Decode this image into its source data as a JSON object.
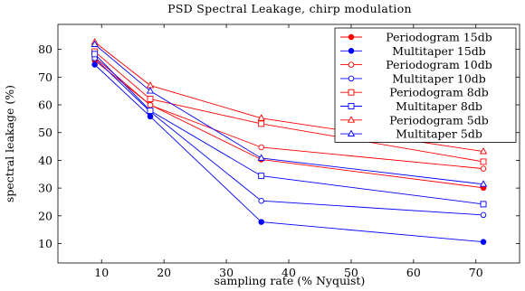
{
  "chart_data": {
    "type": "line",
    "title": "PSD Spectral Leakage, chirp modulation",
    "xlabel": "sampling rate (% Nyquist)",
    "ylabel": "spectral leakage (%)",
    "xlim": [
      3,
      77
    ],
    "ylim": [
      3,
      89
    ],
    "xticks": [
      10,
      20,
      30,
      40,
      50,
      60,
      70
    ],
    "yticks": [
      10,
      20,
      30,
      40,
      50,
      60,
      70,
      80
    ],
    "grid": false,
    "legend_position": "top-right",
    "series": [
      {
        "name": "Periodogram 15db",
        "color": "#ff0000",
        "marker": "filled-circle",
        "x": [
          8.9,
          17.8,
          35.6,
          71.2
        ],
        "y": [
          76,
          60,
          40.3,
          30.1
        ]
      },
      {
        "name": "Multitaper 15db",
        "color": "#0000ff",
        "marker": "filled-circle",
        "x": [
          8.9,
          17.8,
          35.6,
          71.2
        ],
        "y": [
          74.5,
          55.8,
          17.8,
          10.6
        ]
      },
      {
        "name": "Periodogram 10db",
        "color": "#ff0000",
        "marker": "open-circle",
        "x": [
          8.9,
          17.8,
          35.6,
          71.2
        ],
        "y": [
          77.2,
          59.9,
          44.7,
          37
        ]
      },
      {
        "name": "Multitaper 10db",
        "color": "#0000ff",
        "marker": "open-circle",
        "x": [
          8.9,
          17.8,
          35.6,
          71.2
        ],
        "y": [
          76.8,
          57.5,
          25.4,
          20.3
        ]
      },
      {
        "name": "Periodogram 8db",
        "color": "#ff0000",
        "marker": "open-square",
        "x": [
          8.9,
          17.8,
          35.6,
          71.2
        ],
        "y": [
          79.2,
          62.1,
          53.2,
          39.5
        ]
      },
      {
        "name": "Multitaper 8db",
        "color": "#0000ff",
        "marker": "open-square",
        "x": [
          8.9,
          17.8,
          35.6,
          71.2
        ],
        "y": [
          78.3,
          57.9,
          34.4,
          24.2
        ]
      },
      {
        "name": "Periodogram 5db",
        "color": "#ff0000",
        "marker": "open-triangle",
        "x": [
          8.9,
          17.8,
          35.6,
          71.2
        ],
        "y": [
          82.6,
          67,
          55.2,
          43.2
        ]
      },
      {
        "name": "Multitaper 5db",
        "color": "#0000ff",
        "marker": "open-triangle",
        "x": [
          8.9,
          17.8,
          35.6,
          71.2
        ],
        "y": [
          81.8,
          65,
          40.8,
          31.4
        ]
      }
    ]
  }
}
